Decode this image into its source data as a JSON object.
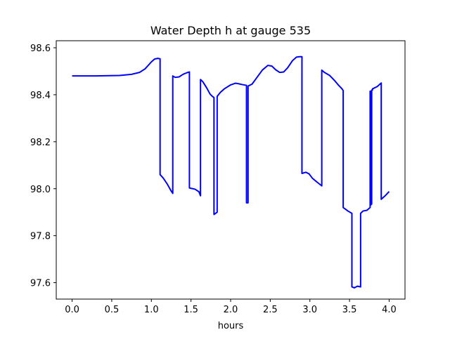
{
  "chart_data": {
    "type": "line",
    "title": "Water Depth h at gauge 535",
    "xlabel": "hours",
    "ylabel": "",
    "xlim": [
      -0.2,
      4.2
    ],
    "ylim": [
      97.53,
      98.63
    ],
    "x_ticks": [
      0.0,
      0.5,
      1.0,
      1.5,
      2.0,
      2.5,
      3.0,
      3.5,
      4.0
    ],
    "x_tick_labels": [
      "0.0",
      "0.5",
      "1.0",
      "1.5",
      "2.0",
      "2.5",
      "3.0",
      "3.5",
      "4.0"
    ],
    "y_ticks": [
      97.6,
      97.8,
      98.0,
      98.2,
      98.4,
      98.6
    ],
    "y_tick_labels": [
      "97.6",
      "97.8",
      "98.0",
      "98.2",
      "98.4",
      "98.6"
    ],
    "grid": false,
    "line_color": "#0000ff",
    "series": [
      {
        "x": [
          0.0,
          0.3,
          0.6,
          0.75,
          0.85,
          0.92,
          1.0,
          1.04,
          1.08,
          1.11,
          1.11,
          1.15,
          1.2,
          1.25,
          1.27,
          1.27,
          1.3,
          1.35,
          1.4,
          1.45,
          1.48,
          1.48,
          1.55,
          1.6,
          1.62,
          1.62,
          1.65,
          1.7,
          1.74,
          1.77,
          1.79,
          1.79,
          1.83,
          1.83,
          1.87,
          1.92,
          2.0,
          2.06,
          2.1,
          2.15,
          2.2,
          2.2,
          2.22,
          2.22,
          2.27,
          2.32,
          2.4,
          2.47,
          2.52,
          2.57,
          2.62,
          2.67,
          2.72,
          2.78,
          2.83,
          2.87,
          2.9,
          2.9,
          2.95,
          2.99,
          3.03,
          3.09,
          3.15,
          3.15,
          3.18,
          3.25,
          3.31,
          3.36,
          3.4,
          3.42,
          3.42,
          3.48,
          3.53,
          3.53,
          3.56,
          3.6,
          3.64,
          3.64,
          3.67,
          3.72,
          3.76,
          3.76,
          3.765,
          3.765,
          3.78,
          3.78,
          3.79,
          3.79,
          3.85,
          3.9,
          3.9,
          3.95,
          4.0
        ],
        "y": [
          98.48,
          98.48,
          98.482,
          98.487,
          98.495,
          98.51,
          98.54,
          98.552,
          98.555,
          98.553,
          98.06,
          98.045,
          98.02,
          97.99,
          97.98,
          98.48,
          98.474,
          98.476,
          98.487,
          98.494,
          98.497,
          98.003,
          97.998,
          97.987,
          97.97,
          98.465,
          98.455,
          98.428,
          98.403,
          98.393,
          98.388,
          97.89,
          97.9,
          98.393,
          98.41,
          98.425,
          98.442,
          98.449,
          98.447,
          98.443,
          98.44,
          97.94,
          97.94,
          98.437,
          98.445,
          98.468,
          98.505,
          98.525,
          98.522,
          98.506,
          98.495,
          98.497,
          98.515,
          98.545,
          98.56,
          98.562,
          98.562,
          98.065,
          98.07,
          98.063,
          98.045,
          98.028,
          98.012,
          98.505,
          98.496,
          98.482,
          98.461,
          98.441,
          98.427,
          98.418,
          97.92,
          97.905,
          97.895,
          97.582,
          97.578,
          97.585,
          97.582,
          97.895,
          97.905,
          97.908,
          97.92,
          98.415,
          98.415,
          97.93,
          97.935,
          98.42,
          98.42,
          98.425,
          98.435,
          98.45,
          97.955,
          97.97,
          97.988
        ]
      }
    ]
  }
}
